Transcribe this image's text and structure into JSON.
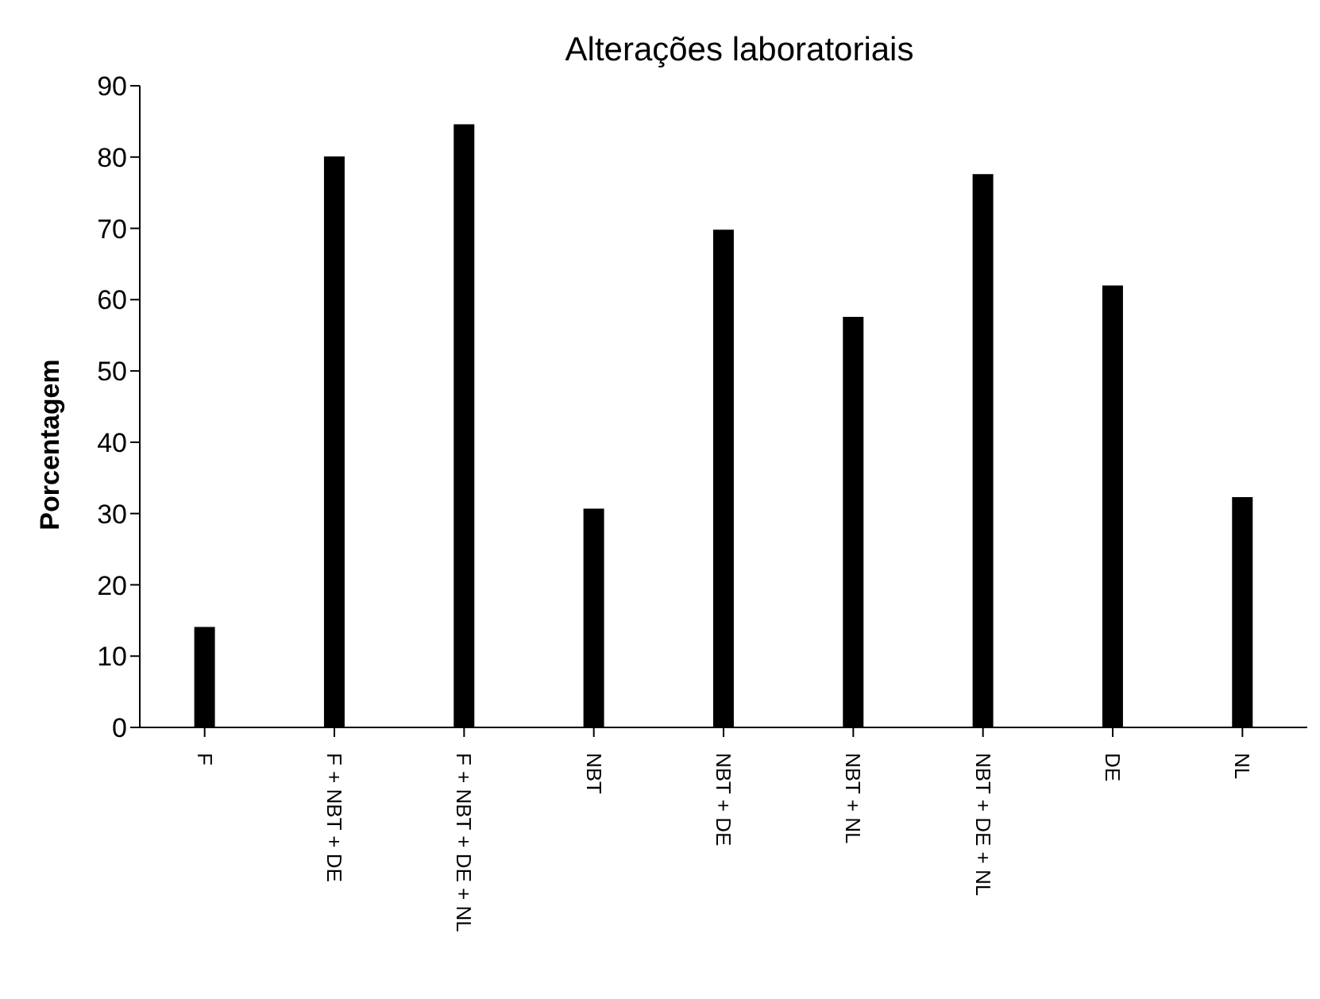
{
  "chart_data": {
    "type": "bar",
    "title": "Alterações laboratoriais",
    "ylabel": "Porcentagem",
    "categories": [
      "F",
      "F + NBT + DE",
      "F + NBT + DE + NL",
      "NBT",
      "NBT + DE",
      "NBT + NL",
      "NBT + DE + NL",
      "DE",
      "NL"
    ],
    "values": [
      14.1,
      80.1,
      84.6,
      30.7,
      69.8,
      57.6,
      77.6,
      62.0,
      32.3
    ],
    "color": "#000000",
    "ylim": [
      0,
      90
    ],
    "yticks": [
      0,
      10,
      20,
      30,
      40,
      50,
      60,
      70,
      80,
      90
    ],
    "grid": false
  }
}
